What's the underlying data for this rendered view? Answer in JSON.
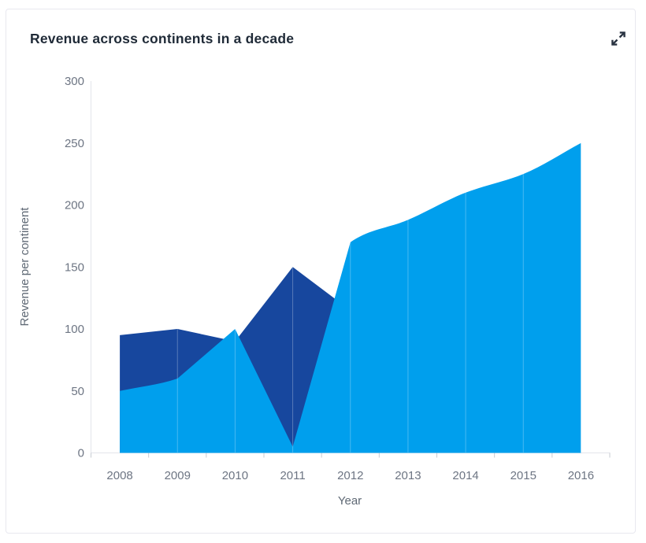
{
  "card": {
    "title": "Revenue across continents in a decade",
    "expand_icon": "expand-diagonal-arrows-icon"
  },
  "chart_data": {
    "type": "area",
    "title": "Revenue across continents in a decade",
    "xlabel": "Year",
    "ylabel": "Revenue per continent",
    "categories": [
      "2008",
      "2009",
      "2010",
      "2011",
      "2012",
      "2013",
      "2014",
      "2015",
      "2016"
    ],
    "ylim": [
      0,
      300
    ],
    "yticks": [
      0,
      50,
      100,
      150,
      200,
      250,
      300
    ],
    "grid": "faint white vertical line at each year over the area fill",
    "legend": "none",
    "series": [
      {
        "name": "dark-blue-area",
        "color": "#17479E",
        "values": [
          95,
          100,
          90,
          150,
          115,
          null,
          null,
          null,
          null
        ],
        "draw_order": "behind"
      },
      {
        "name": "light-blue-area",
        "color": "#009FED",
        "values": [
          50,
          60,
          100,
          5,
          170,
          188,
          210,
          225,
          250
        ],
        "draw_order": "front"
      }
    ]
  }
}
